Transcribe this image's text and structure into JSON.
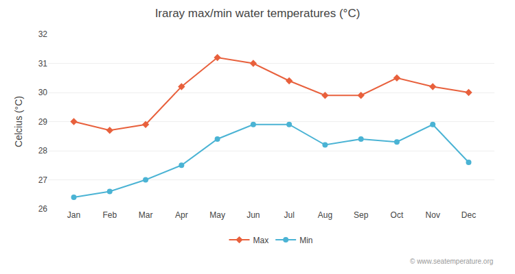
{
  "chart_data": {
    "type": "line",
    "title": "Iraray max/min water temperatures (°C)",
    "y_label": "Celcius (°C)",
    "categories": [
      "Jan",
      "Feb",
      "Mar",
      "Apr",
      "May",
      "Jun",
      "Jul",
      "Aug",
      "Sep",
      "Oct",
      "Nov",
      "Dec"
    ],
    "series": [
      {
        "name": "Max",
        "color": "#e8603c",
        "marker": "diamond",
        "values": [
          29.0,
          28.7,
          28.9,
          30.2,
          31.2,
          31.0,
          30.4,
          29.9,
          29.9,
          30.5,
          30.2,
          30.0
        ]
      },
      {
        "name": "Min",
        "color": "#4ab3d4",
        "marker": "circle",
        "values": [
          26.4,
          26.6,
          27.0,
          27.5,
          28.4,
          28.9,
          28.9,
          28.2,
          28.4,
          28.3,
          28.9,
          27.6
        ]
      }
    ],
    "ylim": [
      26,
      32
    ],
    "yticks": [
      26,
      27,
      28,
      29,
      30,
      31,
      32
    ],
    "grid": true,
    "legend": "bottom",
    "annotations": [
      "© www.seatemperature.org"
    ]
  }
}
